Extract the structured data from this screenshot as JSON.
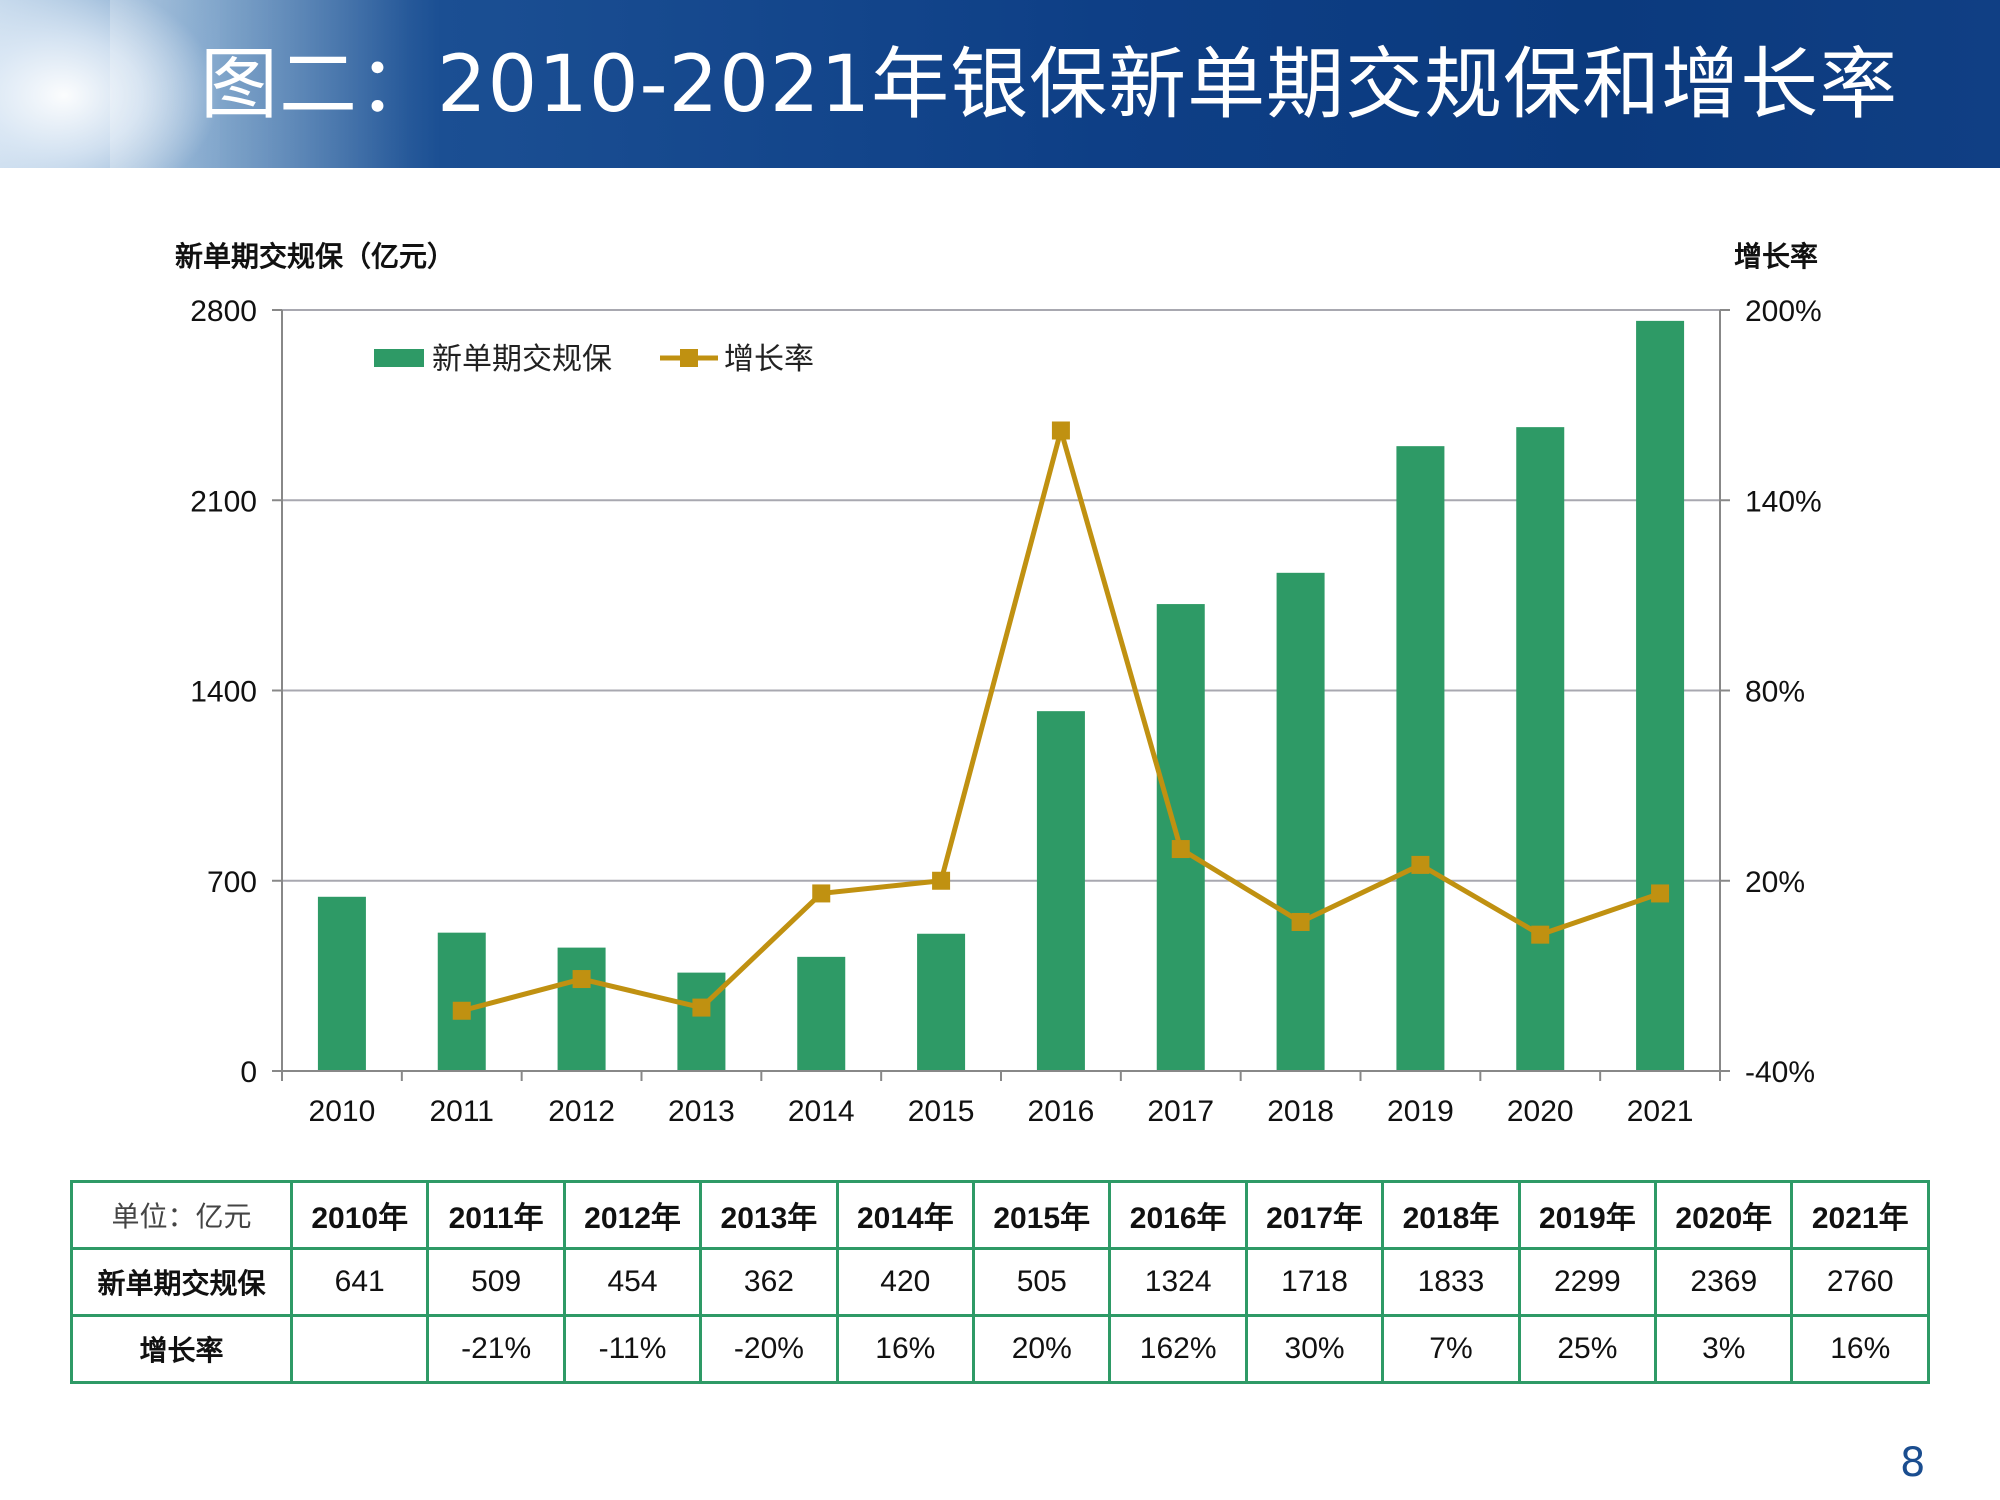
{
  "title": "图二：2010-2021年银保新单期交规保和增长率",
  "page_number": "8",
  "colors": {
    "bar": "#2e9a66",
    "line": "#c09111",
    "grid": "#a8a8b0",
    "table_border": "#2e9a66"
  },
  "chart_data": {
    "type": "bar",
    "categories": [
      "2010",
      "2011",
      "2012",
      "2013",
      "2014",
      "2015",
      "2016",
      "2017",
      "2018",
      "2019",
      "2020",
      "2021"
    ],
    "series": [
      {
        "name": "新单期交规保",
        "type": "bar",
        "axis": "left",
        "values": [
          641,
          509,
          454,
          362,
          420,
          505,
          1324,
          1718,
          1833,
          2299,
          2369,
          2760
        ]
      },
      {
        "name": "增长率",
        "type": "line",
        "axis": "right",
        "values": [
          null,
          -21,
          -11,
          -20,
          16,
          20,
          162,
          30,
          7,
          25,
          3,
          16
        ]
      }
    ],
    "ylabel_left": "新单期交规保（亿元）",
    "ylabel_right": "增长率",
    "ylim_left": [
      0,
      2800
    ],
    "ylim_right": [
      -40,
      200
    ],
    "yticks_left": [
      "0",
      "700",
      "1400",
      "2100",
      "2800"
    ],
    "yticks_right": [
      "-40%",
      "20%",
      "80%",
      "140%",
      "200%"
    ],
    "legend": {
      "placement": "top-left",
      "bar_label": "新单期交规保",
      "line_label": "增长率"
    },
    "grid": true
  },
  "table": {
    "corner": "单位：亿元",
    "headers": [
      "2010年",
      "2011年",
      "2012年",
      "2013年",
      "2014年",
      "2015年",
      "2016年",
      "2017年",
      "2018年",
      "2019年",
      "2020年",
      "2021年"
    ],
    "rows": [
      {
        "label": "新单期交规保",
        "cells": [
          "641",
          "509",
          "454",
          "362",
          "420",
          "505",
          "1324",
          "1718",
          "1833",
          "2299",
          "2369",
          "2760"
        ]
      },
      {
        "label": "增长率",
        "cells": [
          "",
          "-21%",
          "-11%",
          "-20%",
          "16%",
          "20%",
          "162%",
          "30%",
          "7%",
          "25%",
          "3%",
          "16%"
        ]
      }
    ]
  }
}
